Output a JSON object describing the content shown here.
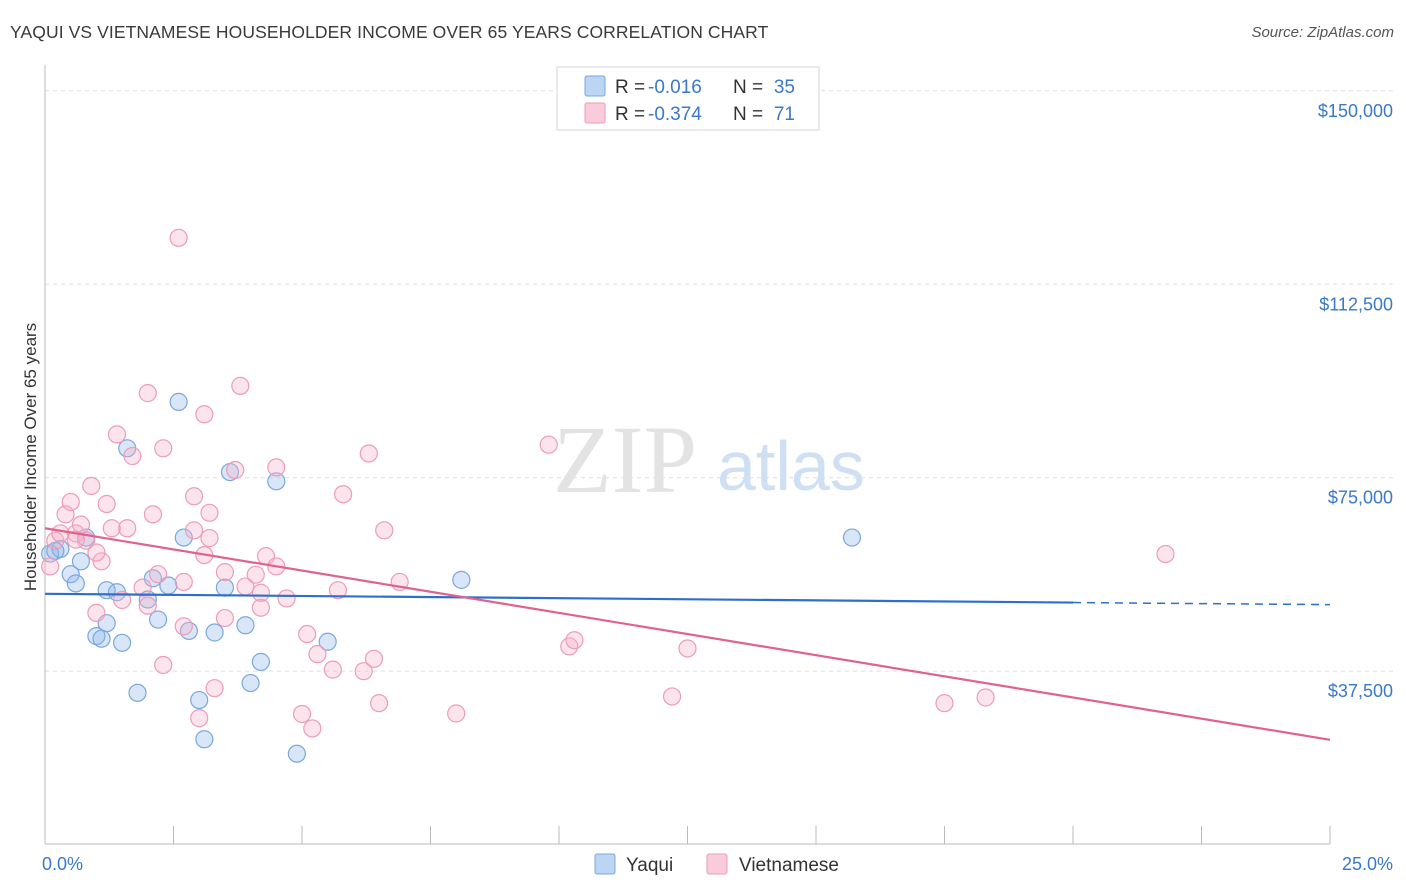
{
  "header": {
    "title": "YAQUI VS VIETNAMESE HOUSEHOLDER INCOME OVER 65 YEARS CORRELATION CHART",
    "source": "Source: ZipAtlas.com"
  },
  "watermark": {
    "zip": "ZIP",
    "atlas": "atlas"
  },
  "chart_data": {
    "type": "scatter",
    "title": "YAQUI VS VIETNAMESE HOUSEHOLDER INCOME OVER 65 YEARS CORRELATION CHART",
    "ylabel": "Householder Income Over 65 years",
    "xlabel": "",
    "xlim": [
      0,
      25
    ],
    "ylim": [
      4000,
      155000
    ],
    "x_tick_labels": [
      "0.0%",
      "25.0%"
    ],
    "y_ticks": [
      {
        "value": 150000,
        "label": "$150,000"
      },
      {
        "value": 112500,
        "label": "$112,500"
      },
      {
        "value": 75000,
        "label": "$75,000"
      },
      {
        "value": 37500,
        "label": "$37,500"
      }
    ],
    "grid": true,
    "legend_placement": "top-center",
    "series": [
      {
        "name": "Yaqui",
        "color": "#8fb8ea",
        "line_color": "#2f6fca",
        "R": "-0.016",
        "N": "35",
        "trend": {
          "x0": 0,
          "y0": 52500,
          "x1": 20,
          "y1": 50800,
          "dash_to_x": 25,
          "dash_to_y": 50400
        },
        "points": [
          [
            0.1,
            60300
          ],
          [
            0.3,
            61200
          ],
          [
            0.5,
            56300
          ],
          [
            0.6,
            54500
          ],
          [
            0.7,
            58800
          ],
          [
            0.8,
            63400
          ],
          [
            1.0,
            44300
          ],
          [
            1.1,
            43800
          ],
          [
            1.2,
            46800
          ],
          [
            1.2,
            53200
          ],
          [
            1.4,
            52800
          ],
          [
            1.5,
            43000
          ],
          [
            1.6,
            80700
          ],
          [
            1.8,
            33300
          ],
          [
            2.0,
            51400
          ],
          [
            2.1,
            55500
          ],
          [
            2.2,
            47500
          ],
          [
            2.4,
            54100
          ],
          [
            2.6,
            89700
          ],
          [
            2.7,
            63400
          ],
          [
            2.8,
            45300
          ],
          [
            3.0,
            31900
          ],
          [
            3.1,
            24300
          ],
          [
            3.3,
            45000
          ],
          [
            3.5,
            53700
          ],
          [
            3.6,
            76100
          ],
          [
            3.9,
            46400
          ],
          [
            4.0,
            35200
          ],
          [
            4.2,
            39300
          ],
          [
            4.5,
            74300
          ],
          [
            4.9,
            21500
          ],
          [
            5.5,
            43200
          ],
          [
            8.1,
            55200
          ],
          [
            15.7,
            63400
          ],
          [
            0.2,
            60800
          ]
        ]
      },
      {
        "name": "Vietnamese",
        "color": "#f5b3c9",
        "line_color": "#e0628f",
        "R": "-0.374",
        "N": "71",
        "trend": {
          "x0": 0,
          "y0": 65200,
          "x1": 25,
          "y1": 24200
        },
        "points": [
          [
            0.1,
            57800
          ],
          [
            0.2,
            62800
          ],
          [
            0.3,
            64200
          ],
          [
            0.4,
            67900
          ],
          [
            0.5,
            70300
          ],
          [
            0.6,
            64200
          ],
          [
            0.7,
            65900
          ],
          [
            0.8,
            62800
          ],
          [
            0.9,
            73400
          ],
          [
            1.0,
            48800
          ],
          [
            1.1,
            58800
          ],
          [
            1.2,
            69900
          ],
          [
            1.3,
            65200
          ],
          [
            1.4,
            83400
          ],
          [
            1.5,
            51300
          ],
          [
            1.6,
            65200
          ],
          [
            1.7,
            79200
          ],
          [
            1.9,
            53700
          ],
          [
            2.0,
            91400
          ],
          [
            2.1,
            67900
          ],
          [
            2.2,
            56300
          ],
          [
            2.3,
            80700
          ],
          [
            2.3,
            38700
          ],
          [
            2.6,
            121500
          ],
          [
            2.7,
            54800
          ],
          [
            2.7,
            46200
          ],
          [
            2.9,
            71400
          ],
          [
            2.9,
            64800
          ],
          [
            3.0,
            28400
          ],
          [
            3.1,
            87300
          ],
          [
            3.2,
            68200
          ],
          [
            3.2,
            63300
          ],
          [
            3.3,
            34200
          ],
          [
            3.5,
            56700
          ],
          [
            3.5,
            47800
          ],
          [
            3.7,
            76500
          ],
          [
            3.8,
            92800
          ],
          [
            3.9,
            53900
          ],
          [
            4.1,
            56200
          ],
          [
            4.2,
            49800
          ],
          [
            4.3,
            59800
          ],
          [
            4.5,
            57800
          ],
          [
            4.5,
            77000
          ],
          [
            4.7,
            51600
          ],
          [
            5.0,
            29200
          ],
          [
            5.1,
            44700
          ],
          [
            5.2,
            26400
          ],
          [
            5.3,
            40800
          ],
          [
            5.6,
            37800
          ],
          [
            5.7,
            53200
          ],
          [
            5.8,
            71800
          ],
          [
            6.2,
            37500
          ],
          [
            6.3,
            79700
          ],
          [
            6.4,
            39900
          ],
          [
            6.5,
            31300
          ],
          [
            6.6,
            64800
          ],
          [
            6.9,
            54800
          ],
          [
            8.0,
            29300
          ],
          [
            9.8,
            81400
          ],
          [
            10.2,
            42300
          ],
          [
            10.3,
            43500
          ],
          [
            12.2,
            32600
          ],
          [
            12.5,
            41900
          ],
          [
            17.5,
            31300
          ],
          [
            18.3,
            32400
          ],
          [
            21.8,
            60200
          ],
          [
            4.2,
            52700
          ],
          [
            2.0,
            50200
          ],
          [
            1.0,
            60500
          ],
          [
            0.6,
            63000
          ],
          [
            3.1,
            60000
          ]
        ]
      }
    ]
  }
}
